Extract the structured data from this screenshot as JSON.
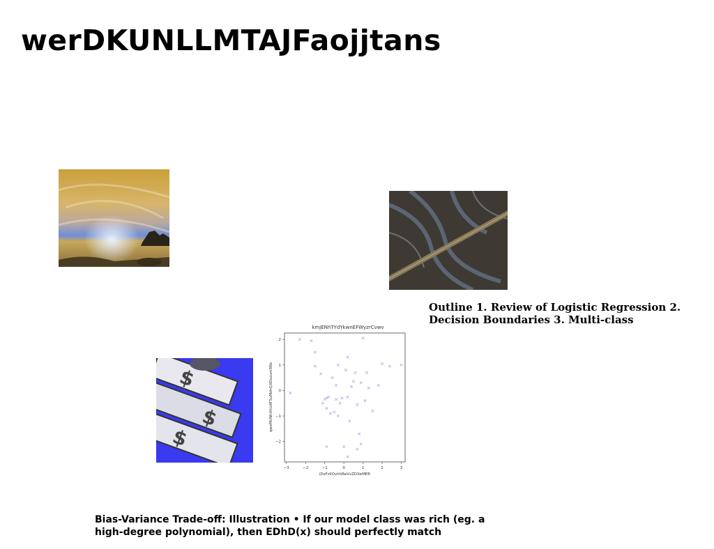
{
  "slide": {
    "title": "werDKUNLLMTAJFaojjtans",
    "caption_right": "Outline 1. Review of Logistic Regression 2. Decision Boundaries 3. Multi-class",
    "caption_bottom": "Bias-Variance Trade-off: Illustration • If our model class was rich (eg. a high-degree polynomial), then EDhD(x) should perfectly match"
  },
  "images": {
    "sunset": "sunset-coast-photo",
    "aerial": "aerial-road-river-photo",
    "money": "dollar-bills-photo"
  },
  "chart_data": {
    "type": "scatter",
    "title": "kmjENhTYdYkwnEFWyzrCvwv",
    "xlabel": "iDsFzliOvhhReVvZDXeMER",
    "ylabel": "qweMcNhXhUATSuMzhQXDszumSNx",
    "xlim": [
      -3.1,
      3.2
    ],
    "ylim": [
      -2.8,
      2.25
    ],
    "xticks": [
      -3,
      -2,
      -1,
      0,
      1,
      2,
      3
    ],
    "yticks": [
      -2,
      -1,
      0,
      1,
      2
    ],
    "marker": "x",
    "color": "#b0b8e8",
    "points": [
      [
        -2.8,
        -0.1
      ],
      [
        -2.3,
        2.0
      ],
      [
        -1.7,
        1.95
      ],
      [
        -1.5,
        1.5
      ],
      [
        -1.5,
        0.95
      ],
      [
        -1.2,
        0.65
      ],
      [
        -1.1,
        -0.5
      ],
      [
        -1.0,
        -0.35
      ],
      [
        -0.9,
        -0.3
      ],
      [
        -0.9,
        -0.7
      ],
      [
        -0.8,
        -0.25
      ],
      [
        -0.7,
        -0.9
      ],
      [
        -0.6,
        0.5
      ],
      [
        -0.5,
        -0.85
      ],
      [
        -0.4,
        0.2
      ],
      [
        -0.3,
        1.0
      ],
      [
        -0.3,
        -1.0
      ],
      [
        -0.2,
        -0.5
      ],
      [
        -0.1,
        -0.3
      ],
      [
        0.1,
        0.8
      ],
      [
        0.2,
        1.3
      ],
      [
        0.2,
        -0.25
      ],
      [
        0.3,
        -1.2
      ],
      [
        0.4,
        0.15
      ],
      [
        0.5,
        0.35
      ],
      [
        0.6,
        0.7
      ],
      [
        0.7,
        -0.55
      ],
      [
        0.8,
        -1.7
      ],
      [
        0.9,
        0.3
      ],
      [
        1.0,
        2.05
      ],
      [
        1.1,
        -0.4
      ],
      [
        1.2,
        0.7
      ],
      [
        1.3,
        0.1
      ],
      [
        -0.4,
        -0.35
      ],
      [
        0.0,
        -2.2
      ],
      [
        0.2,
        -2.6
      ],
      [
        0.7,
        -2.3
      ],
      [
        0.9,
        -2.1
      ],
      [
        1.5,
        -0.8
      ],
      [
        1.8,
        0.2
      ],
      [
        2.0,
        1.05
      ],
      [
        2.4,
        0.95
      ],
      [
        3.0,
        1.0
      ],
      [
        -0.9,
        -2.2
      ]
    ]
  }
}
